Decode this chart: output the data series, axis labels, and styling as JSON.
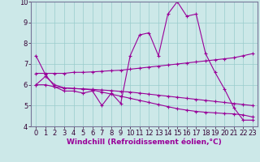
{
  "xlabel": "Windchill (Refroidissement éolien,°C)",
  "background_color": "#cce8e8",
  "line_color": "#990099",
  "xlim": [
    -0.5,
    23.5
  ],
  "ylim": [
    4,
    10
  ],
  "yticks": [
    4,
    5,
    6,
    7,
    8,
    9,
    10
  ],
  "xticks": [
    0,
    1,
    2,
    3,
    4,
    5,
    6,
    7,
    8,
    9,
    10,
    11,
    12,
    13,
    14,
    15,
    16,
    17,
    18,
    19,
    20,
    21,
    22,
    23
  ],
  "series1_y": [
    7.4,
    6.5,
    5.9,
    5.7,
    5.7,
    5.6,
    5.7,
    5.0,
    5.6,
    5.1,
    7.4,
    8.4,
    8.5,
    7.4,
    9.4,
    10.0,
    9.3,
    9.4,
    7.5,
    6.6,
    5.8,
    4.9,
    4.3,
    4.3
  ],
  "series2_y": [
    6.55,
    6.55,
    6.55,
    6.55,
    6.6,
    6.6,
    6.62,
    6.65,
    6.68,
    6.7,
    6.75,
    6.8,
    6.85,
    6.9,
    6.95,
    7.0,
    7.05,
    7.1,
    7.15,
    7.2,
    7.25,
    7.3,
    7.4,
    7.5
  ],
  "series3_y": [
    6.0,
    6.0,
    5.9,
    5.85,
    5.82,
    5.8,
    5.78,
    5.75,
    5.72,
    5.68,
    5.65,
    5.6,
    5.55,
    5.5,
    5.45,
    5.4,
    5.35,
    5.3,
    5.25,
    5.2,
    5.15,
    5.1,
    5.05,
    5.0
  ],
  "series4_y": [
    6.0,
    6.4,
    6.0,
    5.85,
    5.82,
    5.8,
    5.75,
    5.65,
    5.55,
    5.45,
    5.35,
    5.25,
    5.15,
    5.05,
    4.95,
    4.85,
    4.78,
    4.72,
    4.68,
    4.65,
    4.62,
    4.6,
    4.55,
    4.45
  ],
  "grid_color": "#99cccc",
  "xlabel_fontsize": 6.5,
  "tick_fontsize": 6.0
}
